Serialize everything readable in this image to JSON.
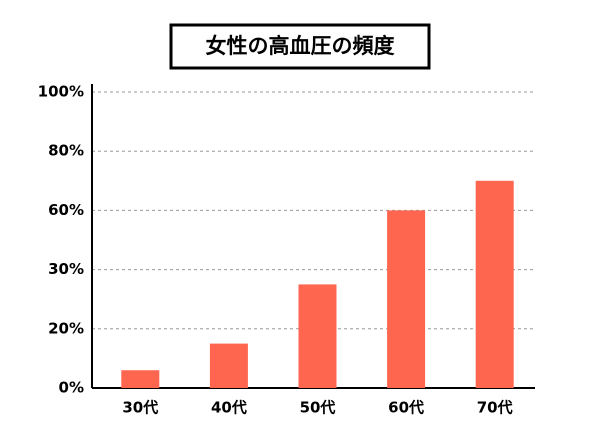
{
  "chart_data": {
    "type": "bar",
    "title": "女性の高血圧の頻度",
    "categories": [
      "30代",
      "40代",
      "50代",
      "60代",
      "70代"
    ],
    "values": [
      6,
      15,
      27.5,
      60,
      70
    ],
    "color": "#ff6650",
    "ylim": [
      0,
      100
    ],
    "yticks": [
      {
        "value": 0,
        "label": "0%"
      },
      {
        "value": 20,
        "label": "20%"
      },
      {
        "value": 30,
        "label": "30%"
      },
      {
        "value": 60,
        "label": "60%"
      },
      {
        "value": 80,
        "label": "80%"
      },
      {
        "value": 100,
        "label": "100%"
      }
    ],
    "grid": true
  }
}
